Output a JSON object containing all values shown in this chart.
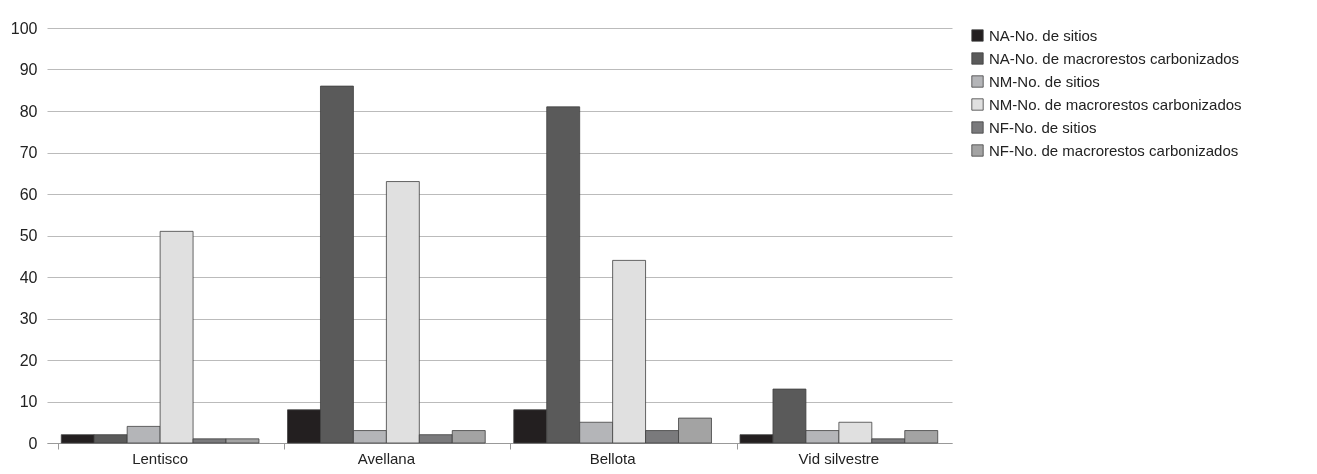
{
  "chart_data": {
    "type": "bar",
    "categories": [
      "Lentisco",
      "Avellana",
      "Bellota",
      "Vid silvestre"
    ],
    "series": [
      {
        "name": "NA-No. de sitios",
        "color": "#231f20",
        "values": [
          2,
          8,
          8,
          2
        ]
      },
      {
        "name": "NA-No. de macrorestos carbonizados",
        "color": "#5a5a5a",
        "values": [
          2,
          86,
          81,
          13
        ]
      },
      {
        "name": "NM-No. de sitios",
        "color": "#b4b5b8",
        "values": [
          4,
          3,
          5,
          3
        ]
      },
      {
        "name": "NM-No. de macrorestos carbonizados",
        "color": "#e0e0e0",
        "values": [
          51,
          63,
          44,
          5
        ]
      },
      {
        "name": "NF-No. de sitios",
        "color": "#7a7a7c",
        "values": [
          1,
          2,
          3,
          1
        ]
      },
      {
        "name": "NF-No. de macrorestos carbonizados",
        "color": "#a3a3a3",
        "values": [
          1,
          3,
          6,
          3
        ]
      }
    ],
    "ylim": [
      0,
      100
    ],
    "yticks": [
      0,
      10,
      20,
      30,
      40,
      50,
      60,
      70,
      80,
      90,
      100
    ],
    "grid": "y",
    "legend": "right"
  }
}
